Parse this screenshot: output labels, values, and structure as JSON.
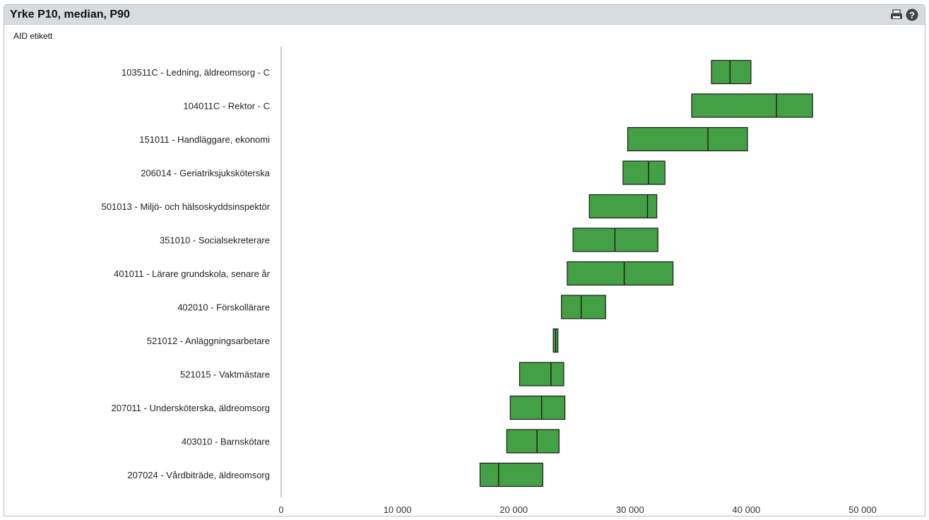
{
  "panel": {
    "title": "Yrke P10, median, P90",
    "tools": [
      {
        "icon": "printer-icon"
      },
      {
        "icon": "help-icon"
      }
    ]
  },
  "chart_data": {
    "type": "box",
    "y_axis_label": "AID etikett",
    "xlim": [
      0,
      55000
    ],
    "x_ticks": [
      0,
      10000,
      20000,
      30000,
      40000,
      50000
    ],
    "x_tick_labels": [
      "0",
      "10 000",
      "20 000",
      "30 000",
      "40 000",
      "50 000"
    ],
    "bar_color": "#44a044",
    "categories": [
      "103511C - Ledning, äldreomsorg - C",
      "104011C - Rektor - C",
      "151011 - Handläggare, ekonomi",
      "206014 - Geriatriksjuksköterska",
      "501013 - Miljö- och hälsoskyddsinspektör",
      "351010 - Socialsekreterare",
      "401011 - Lärare grundskola, senare år",
      "402010 - Förskollärare",
      "521012 - Anläggningsarbetare",
      "521015 - Vaktmästare",
      "207011 - Undersköterska, äldreomsorg",
      "403010 - Barnskötare",
      "207024 - Vårdbiträde, äldreomsorg"
    ],
    "p10": [
      37000,
      35300,
      29800,
      29400,
      26500,
      25100,
      24600,
      24100,
      23400,
      20500,
      19700,
      19400,
      17100
    ],
    "median": [
      38600,
      42600,
      36700,
      31600,
      31500,
      28700,
      29500,
      25800,
      23600,
      23200,
      22400,
      22000,
      18700
    ],
    "p90": [
      40400,
      45700,
      40100,
      33000,
      32300,
      32400,
      33700,
      27900,
      23800,
      24300,
      24400,
      23900,
      22500
    ]
  }
}
